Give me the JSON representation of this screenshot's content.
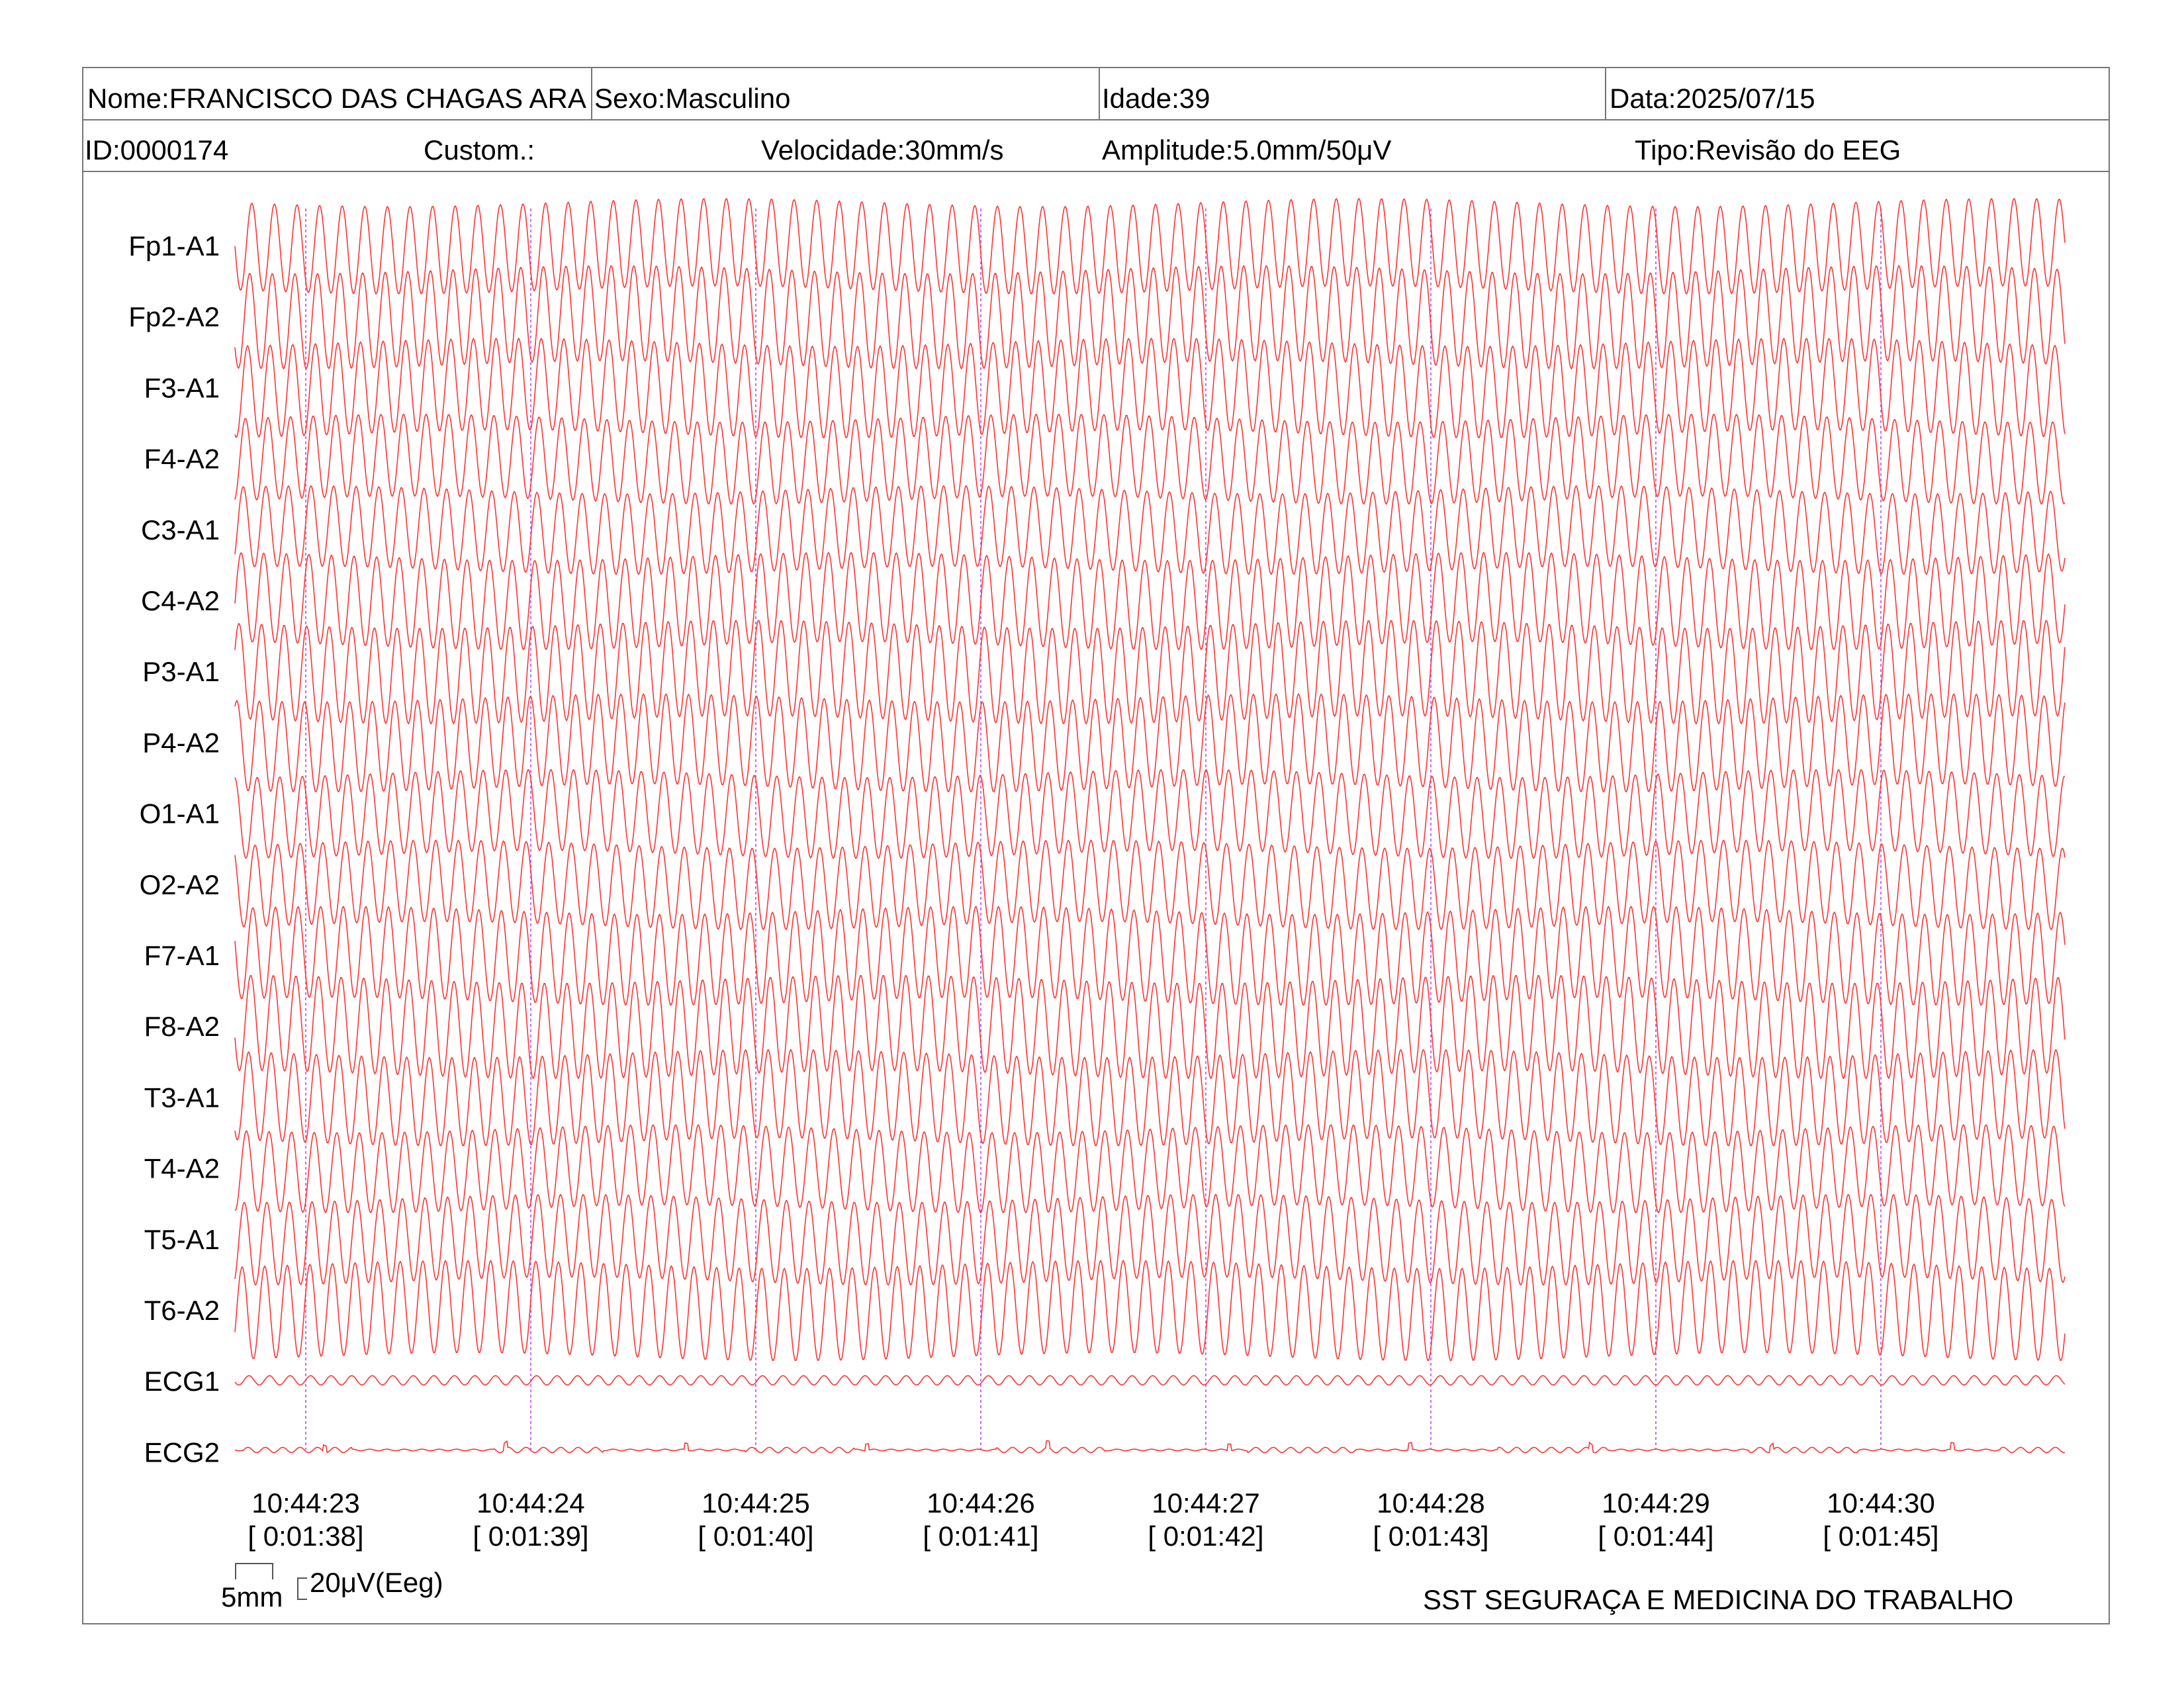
{
  "header": {
    "nome": "Nome:FRANCISCO DAS CHAGAS ARA",
    "sexo": "Sexo:Masculino",
    "idade": "Idade:39",
    "data": "Data:2025/07/15",
    "id": "ID:0000174",
    "custom": "Custom.:",
    "velocidade": "Velocidade:30mm/s",
    "amplitude": "Amplitude:5.0mm/50μV",
    "tipo": "Tipo:Revisão do EEG"
  },
  "chart_data": {
    "type": "line",
    "channels": [
      "Fp1-A1",
      "Fp2-A2",
      "F3-A1",
      "F4-A2",
      "C3-A1",
      "C4-A2",
      "P3-A1",
      "P4-A2",
      "O1-A1",
      "O2-A2",
      "F7-A1",
      "F8-A2",
      "T3-A1",
      "T4-A2",
      "T5-A1",
      "T6-A2",
      "ECG1",
      "ECG2"
    ],
    "time_markers": [
      {
        "clock": "10:44:23",
        "elapsed": "[ 0:01:38]"
      },
      {
        "clock": "10:44:24",
        "elapsed": "[ 0:01:39]"
      },
      {
        "clock": "10:44:25",
        "elapsed": "[ 0:01:40]"
      },
      {
        "clock": "10:44:26",
        "elapsed": "[ 0:01:41]"
      },
      {
        "clock": "10:44:27",
        "elapsed": "[ 0:01:42]"
      },
      {
        "clock": "10:44:28",
        "elapsed": "[ 0:01:43]"
      },
      {
        "clock": "10:44:29",
        "elapsed": "[ 0:01:44]"
      },
      {
        "clock": "10:44:30",
        "elapsed": "[ 0:01:45]"
      }
    ],
    "eeg_frequency_hz": 10,
    "time_range_s": [
      0,
      8.1
    ],
    "trace_color": "#ff3333",
    "marker_color": "#cc66ff"
  },
  "scale": {
    "time": "5mm",
    "amplitude": "20μV(Eeg)"
  },
  "footer": {
    "org": "SST SEGURAÇA E MEDICINA DO TRABALHO"
  }
}
